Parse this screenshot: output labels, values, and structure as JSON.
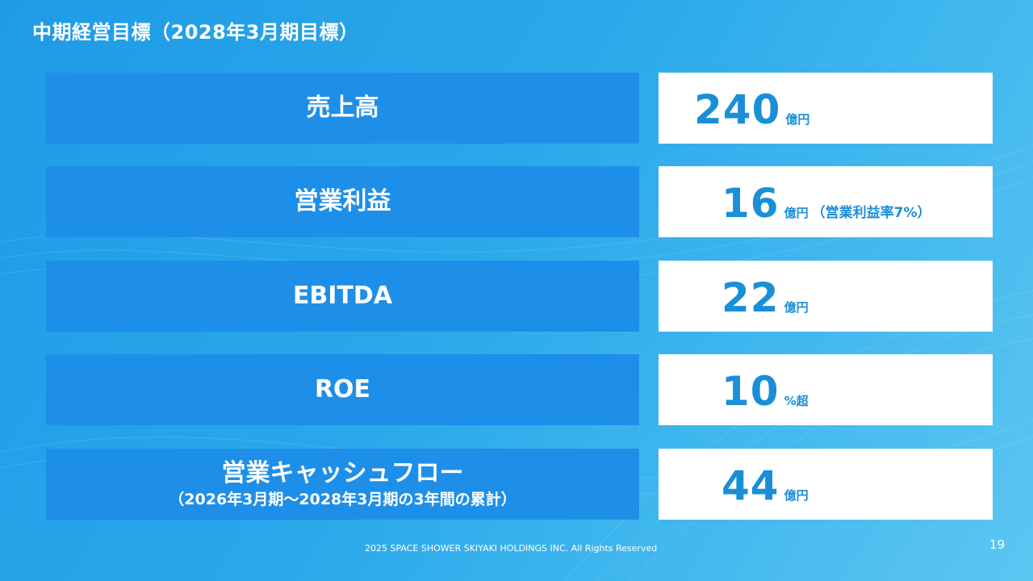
{
  "slide": {
    "title": "中期経営目標（2028年3月期目標）",
    "footer": "2025 SPACE SHOWER SKIYAKI HOLDINGS INC. All Rights Reserved",
    "page_number": "19"
  },
  "targets": [
    {
      "label": "売上高",
      "sublabel": "",
      "value": "240",
      "unit": "億円",
      "note": ""
    },
    {
      "label": "営業利益",
      "sublabel": "",
      "value": "16",
      "unit": "億円",
      "note": "（営業利益率7%）"
    },
    {
      "label": "EBITDA",
      "sublabel": "",
      "value": "22",
      "unit": "億円",
      "note": ""
    },
    {
      "label": "ROE",
      "sublabel": "",
      "value": "10",
      "unit": "%超",
      "note": ""
    },
    {
      "label": "営業キャッシュフロー",
      "sublabel": "（2026年3月期～2028年3月期の3年間の累計）",
      "value": "44",
      "unit": "億円",
      "note": ""
    }
  ],
  "colors": {
    "background": "#2aa8ea",
    "label_box": "#1e8fe8",
    "value_text": "#1a8fd8",
    "value_box": "#ffffff"
  }
}
